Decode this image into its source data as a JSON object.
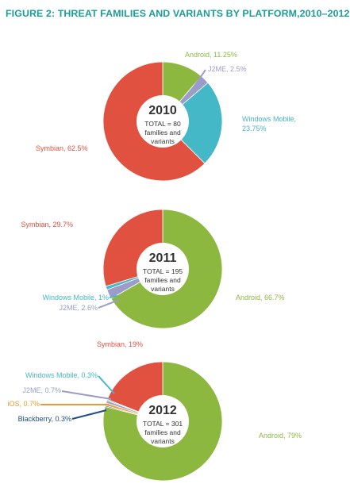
{
  "figure_title": "FIGURE 2: THREAT FAMILIES AND VARIANTS BY PLATFORM,2010–2012",
  "colors": {
    "title": "#1d9c9a",
    "Android": "#8db840",
    "J2ME": "#9c9ccb",
    "Windows Mobile": "#45b8c7",
    "Symbian": "#e0513f",
    "iOS": "#ee9a33",
    "Blackberry": "#1d4f86"
  },
  "chart_data": [
    {
      "type": "pie",
      "year_label": "2010",
      "center_total": "TOTAL = 80",
      "center_line2": "families and",
      "center_line3": "variants",
      "slices": [
        {
          "name": "Android",
          "value": 11.25,
          "label": "Android, 11.25%"
        },
        {
          "name": "J2ME",
          "value": 2.5,
          "label": "J2ME, 2.5%"
        },
        {
          "name": "Windows Mobile",
          "value": 23.75,
          "label": "Windows Mobile,",
          "label2": "23.75%"
        },
        {
          "name": "Symbian",
          "value": 62.5,
          "label": "Symbian, 62.5%"
        }
      ]
    },
    {
      "type": "pie",
      "year_label": "2011",
      "center_total": "TOTAL = 195",
      "center_line2": "families and",
      "center_line3": "variants",
      "slices": [
        {
          "name": "Android",
          "value": 66.7,
          "label": "Android, 66.7%"
        },
        {
          "name": "J2ME",
          "value": 2.6,
          "label": "J2ME, 2.6%"
        },
        {
          "name": "Windows Mobile",
          "value": 1,
          "label": "Windows Mobile, 1%"
        },
        {
          "name": "Symbian",
          "value": 29.7,
          "label": "Symbian, 29.7%"
        }
      ]
    },
    {
      "type": "pie",
      "year_label": "2012",
      "center_total": "TOTAL = 301",
      "center_line2": "families and",
      "center_line3": "variants",
      "slices": [
        {
          "name": "Android",
          "value": 79,
          "label": "Android, 79%"
        },
        {
          "name": "Blackberry",
          "value": 0.3,
          "label": "Blackberry, 0.3%"
        },
        {
          "name": "iOS",
          "value": 0.7,
          "label": "iOS, 0.7%"
        },
        {
          "name": "J2ME",
          "value": 0.7,
          "label": "J2ME, 0.7%"
        },
        {
          "name": "Windows Mobile",
          "value": 0.3,
          "label": "Windows Mobile, 0.3%"
        },
        {
          "name": "Symbian",
          "value": 19,
          "label": "Symbian, 19%"
        }
      ]
    }
  ]
}
